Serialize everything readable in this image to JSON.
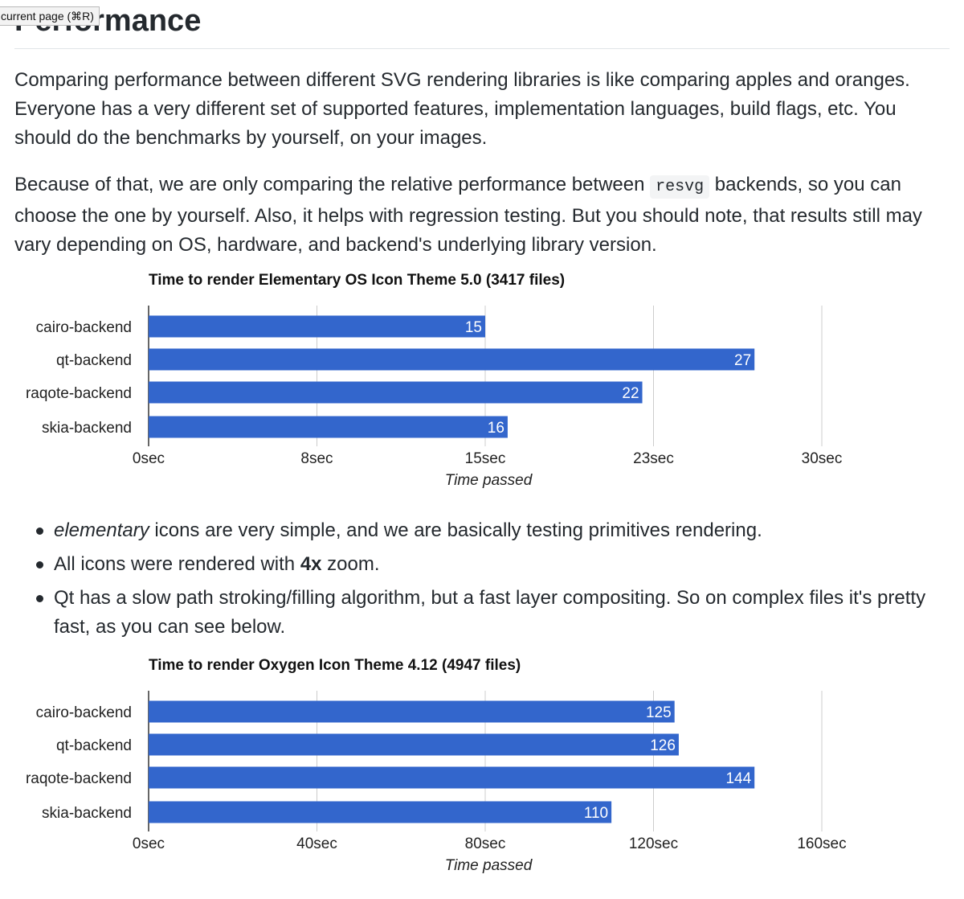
{
  "tooltip": "current page (⌘R)",
  "heading": "Performance",
  "intro": {
    "p1": "Comparing performance between different SVG rendering libraries is like comparing apples and oranges. Everyone has a very different set of supported features, implementation languages, build flags, etc. You should do the benchmarks by yourself, on your images.",
    "p2_before": "Because of that, we are only comparing the relative performance between ",
    "p2_code": "resvg",
    "p2_after": " backends, so you can choose the one by yourself. Also, it helps with regression testing. But you should note, that results still may vary depending on OS, hardware, and backend's underlying library version."
  },
  "bullets": {
    "b1_em": "elementary",
    "b1_rest": " icons are very simple, and we are basically testing primitives rendering.",
    "b2_before": "All icons were rendered with ",
    "b2_bold": "4x",
    "b2_after": " zoom.",
    "b3": "Qt has a slow path stroking/filling algorithm, but a fast layer compositing. So on complex files it's pretty fast, as you can see below."
  },
  "colors": {
    "bar": "#3366cc",
    "grid": "#cccccc",
    "axis": "#333333",
    "text": "#24292e"
  },
  "chart_data": [
    {
      "type": "bar",
      "title": "Time to render Elementary OS Icon Theme 5.0 (3417 files)",
      "categories": [
        "cairo-backend",
        "qt-backend",
        "raqote-backend",
        "skia-backend"
      ],
      "values": [
        15,
        27,
        22,
        16
      ],
      "xlabel": "Time passed",
      "ylabel": "",
      "xlim": [
        0,
        30
      ],
      "ticks": [
        0,
        7.5,
        15,
        22.5,
        30
      ],
      "tick_labels": [
        "0sec",
        "8sec",
        "15sec",
        "23sec",
        "30sec"
      ],
      "orientation": "horizontal",
      "grid": true
    },
    {
      "type": "bar",
      "title": "Time to render Oxygen Icon Theme 4.12 (4947 files)",
      "categories": [
        "cairo-backend",
        "qt-backend",
        "raqote-backend",
        "skia-backend"
      ],
      "values": [
        125,
        126,
        144,
        110
      ],
      "xlabel": "Time passed",
      "ylabel": "",
      "xlim": [
        0,
        160
      ],
      "ticks": [
        0,
        40,
        80,
        120,
        160
      ],
      "tick_labels": [
        "0sec",
        "40sec",
        "80sec",
        "120sec",
        "160sec"
      ],
      "orientation": "horizontal",
      "grid": true
    }
  ]
}
